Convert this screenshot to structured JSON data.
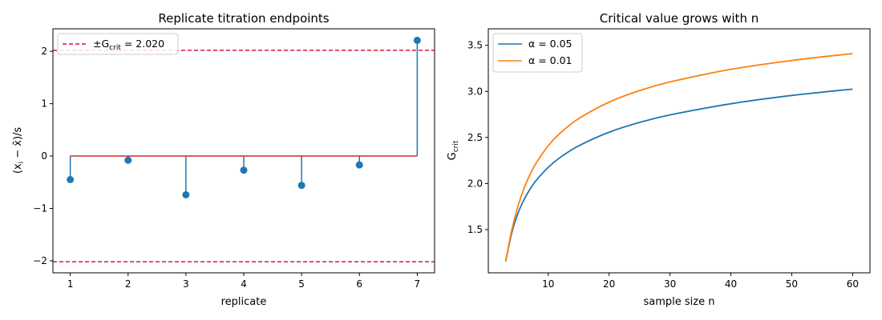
{
  "chart_data": [
    {
      "type": "stem",
      "title": "Replicate titration endpoints",
      "xlabel": "replicate",
      "ylabel_parts": [
        "(x",
        "i",
        " − x̄)/s"
      ],
      "x": [
        1,
        2,
        3,
        4,
        5,
        6,
        7
      ],
      "values": [
        -0.45,
        -0.08,
        -0.74,
        -0.27,
        -0.56,
        -0.17,
        2.21
      ],
      "xlim": [
        0.7,
        7.3
      ],
      "ylim": [
        -2.23,
        2.43
      ],
      "xticks": [
        1,
        2,
        3,
        4,
        5,
        6,
        7
      ],
      "yticks": [
        -2,
        -1,
        0,
        1,
        2
      ],
      "ytick_labels": [
        "−2",
        "−1",
        "0",
        "1",
        "2"
      ],
      "threshold": 2.02,
      "legend": {
        "position": "top-left",
        "label_prefix": "±G",
        "label_sub": "crit",
        "label_suffix": " = 2.020"
      },
      "colors": {
        "stem": "#1f77b4",
        "baseline": "#d62728",
        "threshold": "#dc143c"
      },
      "grid": false
    },
    {
      "type": "line",
      "title": "Critical value grows with n",
      "xlabel": "sample size n",
      "ylabel_parts": [
        "G",
        "crit"
      ],
      "xlim": [
        0.15,
        62.85
      ],
      "ylim": [
        1.03,
        3.68
      ],
      "xticks": [
        10,
        20,
        30,
        40,
        50,
        60
      ],
      "yticks": [
        1.5,
        2.0,
        2.5,
        3.0,
        3.5
      ],
      "ytick_labels": [
        "1.5",
        "2.0",
        "2.5",
        "3.0",
        "3.5"
      ],
      "x": [
        3,
        4,
        5,
        6,
        7,
        8,
        10,
        12,
        15,
        20,
        25,
        30,
        40,
        50,
        60
      ],
      "series": [
        {
          "name": "α = 0.05",
          "color": "#1f77b4",
          "values": [
            1.153,
            1.463,
            1.672,
            1.822,
            1.938,
            2.032,
            2.176,
            2.285,
            2.409,
            2.557,
            2.663,
            2.745,
            2.866,
            2.956,
            3.025
          ]
        },
        {
          "name": "α = 0.01",
          "color": "#ff7f0e",
          "values": [
            1.155,
            1.492,
            1.749,
            1.944,
            2.097,
            2.221,
            2.41,
            2.55,
            2.705,
            2.884,
            3.009,
            3.103,
            3.24,
            3.336,
            3.411
          ]
        }
      ],
      "legend": {
        "position": "top-left"
      },
      "grid": false
    }
  ]
}
